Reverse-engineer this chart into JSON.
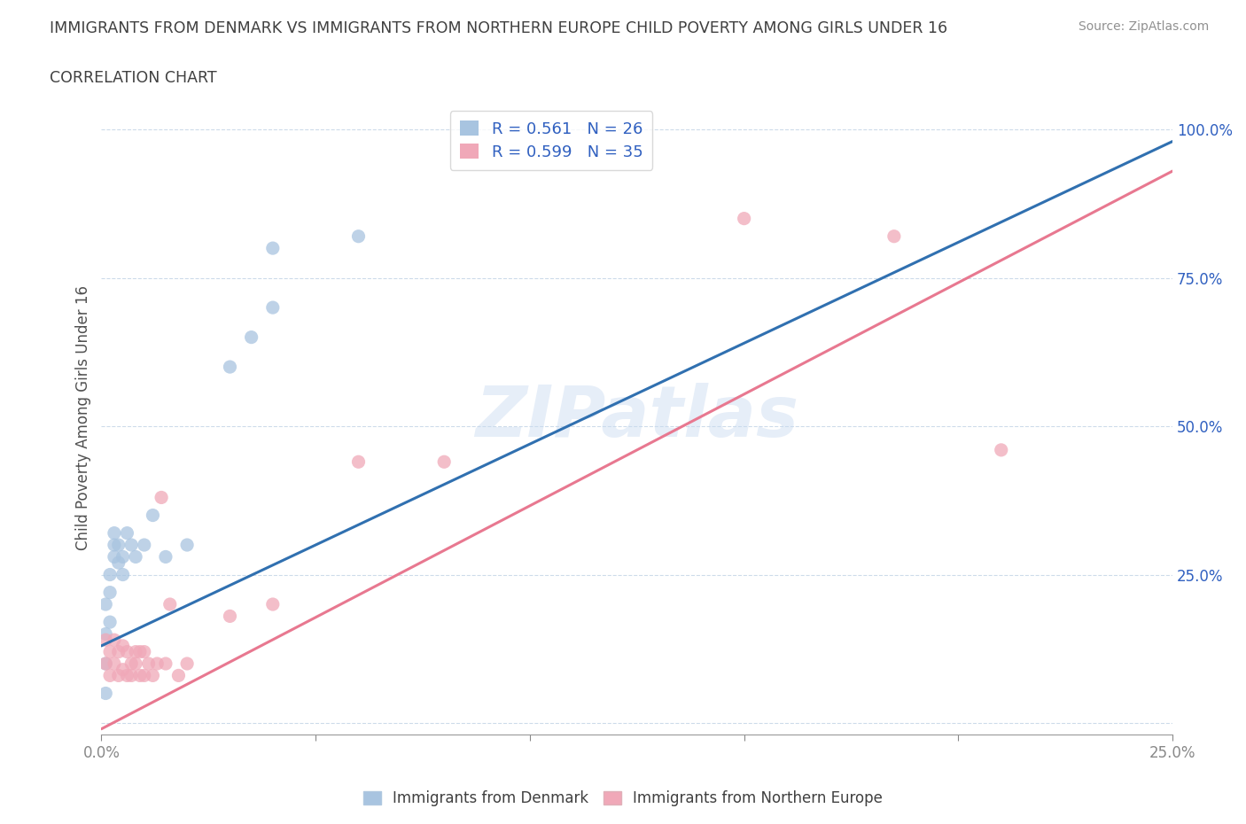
{
  "title": "IMMIGRANTS FROM DENMARK VS IMMIGRANTS FROM NORTHERN EUROPE CHILD POVERTY AMONG GIRLS UNDER 16",
  "subtitle": "CORRELATION CHART",
  "source": "Source: ZipAtlas.com",
  "ylabel": "Child Poverty Among Girls Under 16",
  "xlim": [
    0.0,
    0.25
  ],
  "ylim": [
    -0.02,
    1.05
  ],
  "xtick_positions": [
    0.0,
    0.05,
    0.1,
    0.15,
    0.2,
    0.25
  ],
  "xtick_labels_shown": [
    "0.0%",
    "",
    "",
    "",
    "",
    "25.0%"
  ],
  "ytick_positions": [
    0.0,
    0.25,
    0.5,
    0.75,
    1.0
  ],
  "ytick_labels_shown": [
    "",
    "25.0%",
    "50.0%",
    "75.0%",
    "100.0%"
  ],
  "blue_color": "#a8c4e0",
  "pink_color": "#f0a8b8",
  "blue_line_color": "#3070b0",
  "pink_line_color": "#e87890",
  "legend_text_color": "#3060c0",
  "R_blue": 0.561,
  "N_blue": 26,
  "R_pink": 0.599,
  "N_pink": 35,
  "background_color": "#ffffff",
  "grid_color": "#c8d8e8",
  "title_color": "#404040",
  "blue_line_x0": 0.0,
  "blue_line_y0": 0.13,
  "blue_line_x1": 0.25,
  "blue_line_y1": 0.98,
  "pink_line_x0": 0.0,
  "pink_line_y0": -0.01,
  "pink_line_x1": 0.25,
  "pink_line_y1": 0.93,
  "blue_scatter_x": [
    0.001,
    0.001,
    0.001,
    0.001,
    0.002,
    0.002,
    0.002,
    0.003,
    0.003,
    0.003,
    0.004,
    0.004,
    0.005,
    0.005,
    0.006,
    0.007,
    0.008,
    0.01,
    0.012,
    0.015,
    0.02,
    0.03,
    0.035,
    0.04,
    0.04,
    0.06
  ],
  "blue_scatter_y": [
    0.05,
    0.1,
    0.15,
    0.2,
    0.17,
    0.22,
    0.25,
    0.28,
    0.3,
    0.32,
    0.27,
    0.3,
    0.25,
    0.28,
    0.32,
    0.3,
    0.28,
    0.3,
    0.35,
    0.28,
    0.3,
    0.6,
    0.65,
    0.7,
    0.8,
    0.82
  ],
  "pink_scatter_x": [
    0.001,
    0.001,
    0.002,
    0.002,
    0.003,
    0.003,
    0.004,
    0.004,
    0.005,
    0.005,
    0.006,
    0.006,
    0.007,
    0.007,
    0.008,
    0.008,
    0.009,
    0.009,
    0.01,
    0.01,
    0.011,
    0.012,
    0.013,
    0.014,
    0.015,
    0.016,
    0.018,
    0.02,
    0.03,
    0.04,
    0.06,
    0.08,
    0.15,
    0.185,
    0.21
  ],
  "pink_scatter_y": [
    0.1,
    0.14,
    0.08,
    0.12,
    0.1,
    0.14,
    0.08,
    0.12,
    0.09,
    0.13,
    0.08,
    0.12,
    0.1,
    0.08,
    0.1,
    0.12,
    0.08,
    0.12,
    0.08,
    0.12,
    0.1,
    0.08,
    0.1,
    0.38,
    0.1,
    0.2,
    0.08,
    0.1,
    0.18,
    0.2,
    0.44,
    0.44,
    0.85,
    0.82,
    0.46
  ]
}
